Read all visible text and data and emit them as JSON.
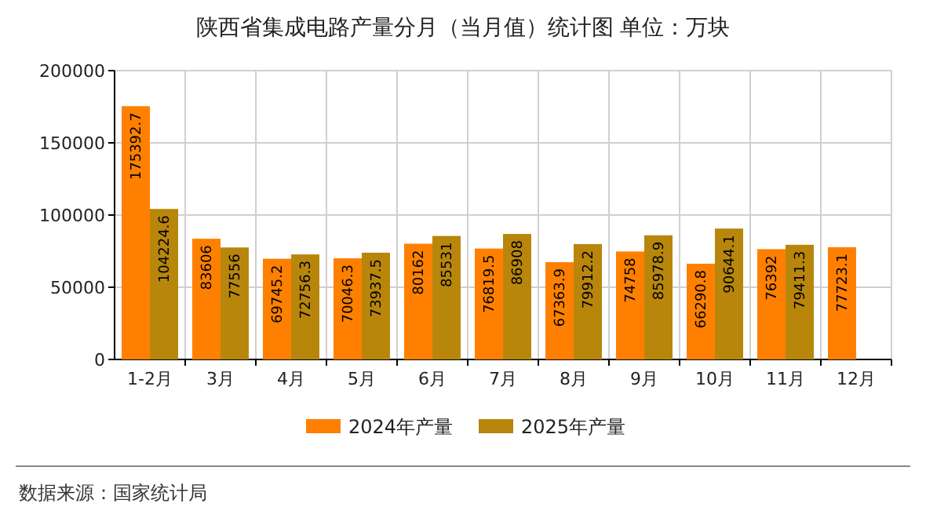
{
  "chart_data": {
    "type": "bar",
    "title": "陕西省集成电路产量分月（当月值）统计图 单位：万块",
    "categories": [
      "1-2月",
      "3月",
      "4月",
      "5月",
      "6月",
      "7月",
      "8月",
      "9月",
      "10月",
      "11月",
      "12月"
    ],
    "series": [
      {
        "name": "2024年产量",
        "color": "#ff8000",
        "values": [
          175392.7,
          83606,
          69745.2,
          70046.3,
          80162,
          76819.5,
          67363.9,
          74758,
          66290.8,
          76392,
          77723.1
        ]
      },
      {
        "name": "2025年产量",
        "color": "#b8860b",
        "values": [
          104224.6,
          77556,
          72756.3,
          73937.5,
          85531,
          86908,
          79912.2,
          85978.9,
          90644.1,
          79411.3,
          null
        ]
      }
    ],
    "ylim": [
      0,
      200000
    ],
    "yticks": [
      0,
      50000,
      100000,
      150000,
      200000
    ],
    "grid": true,
    "legend": "bottom",
    "data_labels": true,
    "annotations": [
      "数据来源：国家统计局"
    ]
  }
}
